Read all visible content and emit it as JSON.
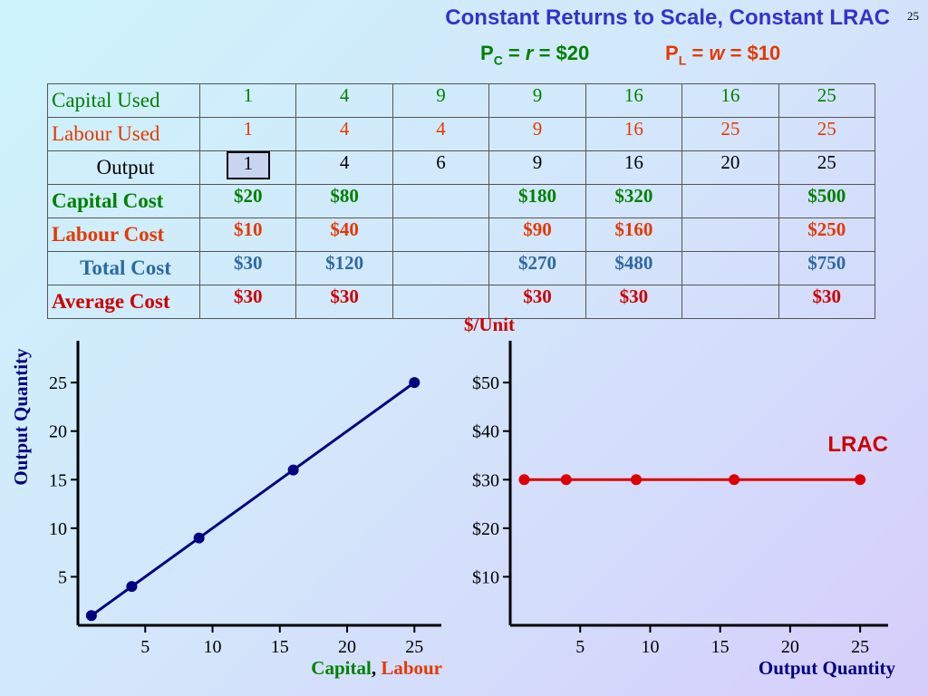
{
  "title": "Constant Returns to Scale, Constant LRAC",
  "page_number": "25",
  "prices": {
    "pc_prefix": "P",
    "pc_sub": "C",
    "pc_eq": " = ",
    "pc_var": "r",
    "pc_value": " = $20",
    "pl_prefix": "P",
    "pl_sub": "L",
    "pl_eq": " = ",
    "pl_var": "w",
    "pl_value": " = $10"
  },
  "table": {
    "rows": [
      {
        "label": "Capital Used",
        "cells": [
          "1",
          "4",
          "9",
          "9",
          "16",
          "16",
          "25"
        ]
      },
      {
        "label": "Labour Used",
        "cells": [
          "1",
          "4",
          "4",
          "9",
          "16",
          "25",
          "25"
        ]
      },
      {
        "label": "Output",
        "cells": [
          "1",
          "4",
          "6",
          "9",
          "16",
          "20",
          "25"
        ]
      },
      {
        "label": "Capital Cost",
        "cells": [
          "$20",
          "$80",
          "",
          "$180",
          "$320",
          "",
          "$500"
        ]
      },
      {
        "label": "Labour Cost",
        "cells": [
          "$10",
          "$40",
          "",
          "$90",
          "$160",
          "",
          "$250"
        ]
      },
      {
        "label": "Total Cost",
        "cells": [
          "$30",
          "$120",
          "",
          "$270",
          "$480",
          "",
          "$750"
        ]
      },
      {
        "label": "Average Cost",
        "cells": [
          "$30",
          "$30",
          "",
          "$30",
          "$30",
          "",
          "$30"
        ]
      }
    ]
  },
  "colors": {
    "line_chart": "#000080",
    "lrac": "#dd0000",
    "capital": "#008000",
    "labour": "#e53900",
    "title": "#3333cc"
  },
  "chart_data": [
    {
      "type": "line",
      "ylabel": "Output Quantity",
      "xlabel_capital": "Capital",
      "xlabel_sep": ", ",
      "xlabel_labour": "Labour",
      "x": [
        1,
        4,
        9,
        16,
        25
      ],
      "y": [
        1,
        4,
        9,
        16,
        25
      ],
      "xticks": [
        "5",
        "10",
        "15",
        "20",
        "25"
      ],
      "yticks": [
        "5",
        "10",
        "15",
        "20",
        "25"
      ],
      "xlim": [
        0,
        27
      ],
      "ylim": [
        0,
        28
      ]
    },
    {
      "type": "line",
      "ylabel": "$/Unit",
      "xlabel": "Output Quantity",
      "series": [
        {
          "name": "LRAC",
          "x": [
            1,
            4,
            9,
            16,
            25
          ],
          "y": [
            30,
            30,
            30,
            30,
            30
          ]
        }
      ],
      "xticks": [
        "5",
        "10",
        "15",
        "20",
        "25"
      ],
      "yticks": [
        "$10",
        "$20",
        "$30",
        "$40",
        "$50"
      ],
      "xlim": [
        0,
        27
      ],
      "ylim": [
        0,
        56
      ]
    }
  ]
}
